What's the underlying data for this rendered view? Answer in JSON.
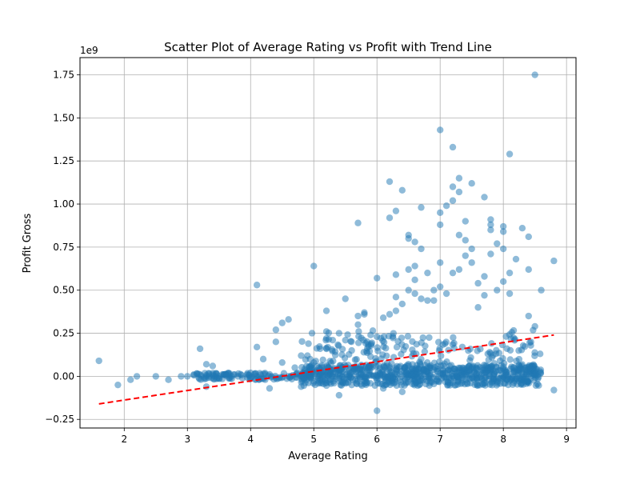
{
  "chart_data": {
    "type": "scatter",
    "title": "Scatter Plot of Average Rating vs Profit with Trend Line",
    "xlabel": "Average Rating",
    "ylabel": "Profit Gross",
    "y_multiplier_label": "1e9",
    "xlim": [
      1.3,
      9.15
    ],
    "ylim": [
      -0.3,
      1.85
    ],
    "x_ticks": [
      2,
      3,
      4,
      5,
      6,
      7,
      8,
      9
    ],
    "x_tick_labels": [
      "2",
      "3",
      "4",
      "5",
      "6",
      "7",
      "8",
      "9"
    ],
    "y_ticks": [
      -0.25,
      0.0,
      0.25,
      0.5,
      0.75,
      1.0,
      1.25,
      1.5,
      1.75
    ],
    "y_tick_labels": [
      "−0.25",
      "0.00",
      "0.25",
      "0.50",
      "0.75",
      "1.00",
      "1.25",
      "1.50",
      "1.75"
    ],
    "grid": true,
    "colors": {
      "points": "#1f77b4",
      "trend": "#ff0000"
    },
    "trend_line": {
      "x": [
        1.6,
        8.8
      ],
      "y": [
        -0.16,
        0.24
      ]
    },
    "points": [
      [
        1.6,
        0.09
      ],
      [
        1.9,
        -0.05
      ],
      [
        2.1,
        -0.02
      ],
      [
        2.2,
        0.0
      ],
      [
        2.5,
        0.0
      ],
      [
        2.7,
        -0.02
      ],
      [
        2.9,
        0.0
      ],
      [
        3.0,
        0.0
      ],
      [
        3.1,
        0.01
      ],
      [
        3.2,
        0.16
      ],
      [
        3.3,
        0.07
      ],
      [
        3.3,
        -0.06
      ],
      [
        3.4,
        0.06
      ],
      [
        3.3,
        0.0
      ],
      [
        3.5,
        0.0
      ],
      [
        3.6,
        0.01
      ],
      [
        3.7,
        0.0
      ],
      [
        3.8,
        0.0
      ],
      [
        4.0,
        0.02
      ],
      [
        4.1,
        0.53
      ],
      [
        4.1,
        0.17
      ],
      [
        4.2,
        0.1
      ],
      [
        4.3,
        -0.07
      ],
      [
        4.4,
        0.27
      ],
      [
        4.4,
        0.2
      ],
      [
        4.5,
        0.31
      ],
      [
        4.6,
        0.33
      ],
      [
        4.5,
        0.08
      ],
      [
        4.7,
        0.05
      ],
      [
        4.8,
        0.12
      ],
      [
        4.8,
        -0.06
      ],
      [
        4.9,
        0.12
      ],
      [
        5.0,
        0.64
      ],
      [
        5.0,
        0.08
      ],
      [
        5.1,
        0.16
      ],
      [
        5.2,
        0.38
      ],
      [
        5.2,
        0.26
      ],
      [
        5.2,
        0.22
      ],
      [
        5.3,
        0.21
      ],
      [
        5.4,
        0.25
      ],
      [
        5.4,
        -0.11
      ],
      [
        5.5,
        0.45
      ],
      [
        5.5,
        0.21
      ],
      [
        5.6,
        0.15
      ],
      [
        5.6,
        -0.05
      ],
      [
        5.7,
        0.89
      ],
      [
        5.7,
        0.35
      ],
      [
        5.7,
        0.3
      ],
      [
        5.8,
        0.37
      ],
      [
        5.8,
        0.36
      ],
      [
        5.9,
        0.24
      ],
      [
        6.0,
        0.57
      ],
      [
        6.0,
        0.23
      ],
      [
        6.0,
        -0.2
      ],
      [
        6.1,
        0.34
      ],
      [
        6.1,
        -0.07
      ],
      [
        6.2,
        1.13
      ],
      [
        6.2,
        0.92
      ],
      [
        6.2,
        0.36
      ],
      [
        6.3,
        0.96
      ],
      [
        6.3,
        0.59
      ],
      [
        6.3,
        0.46
      ],
      [
        6.3,
        0.38
      ],
      [
        6.4,
        1.08
      ],
      [
        6.4,
        0.42
      ],
      [
        6.4,
        -0.09
      ],
      [
        6.5,
        0.82
      ],
      [
        6.5,
        0.8
      ],
      [
        6.5,
        0.62
      ],
      [
        6.5,
        0.5
      ],
      [
        6.6,
        0.78
      ],
      [
        6.6,
        0.64
      ],
      [
        6.6,
        0.56
      ],
      [
        6.6,
        0.48
      ],
      [
        6.7,
        0.98
      ],
      [
        6.7,
        0.74
      ],
      [
        6.7,
        0.45
      ],
      [
        6.8,
        0.6
      ],
      [
        6.8,
        0.44
      ],
      [
        6.9,
        0.5
      ],
      [
        6.9,
        0.44
      ],
      [
        7.0,
        1.43
      ],
      [
        7.0,
        0.95
      ],
      [
        7.0,
        0.88
      ],
      [
        7.0,
        0.66
      ],
      [
        7.0,
        0.52
      ],
      [
        7.1,
        0.99
      ],
      [
        7.1,
        0.48
      ],
      [
        7.2,
        1.33
      ],
      [
        7.2,
        1.1
      ],
      [
        7.2,
        1.02
      ],
      [
        7.2,
        0.6
      ],
      [
        7.3,
        1.15
      ],
      [
        7.3,
        1.07
      ],
      [
        7.3,
        0.82
      ],
      [
        7.3,
        0.62
      ],
      [
        7.4,
        0.9
      ],
      [
        7.4,
        0.79
      ],
      [
        7.4,
        0.7
      ],
      [
        7.5,
        1.12
      ],
      [
        7.5,
        0.74
      ],
      [
        7.5,
        0.66
      ],
      [
        7.6,
        0.54
      ],
      [
        7.6,
        0.4
      ],
      [
        7.7,
        1.04
      ],
      [
        7.7,
        0.58
      ],
      [
        7.7,
        0.47
      ],
      [
        7.8,
        0.91
      ],
      [
        7.8,
        0.88
      ],
      [
        7.8,
        0.85
      ],
      [
        7.8,
        0.71
      ],
      [
        7.9,
        0.77
      ],
      [
        7.9,
        0.5
      ],
      [
        8.0,
        0.87
      ],
      [
        8.0,
        0.84
      ],
      [
        8.0,
        0.74
      ],
      [
        8.0,
        0.55
      ],
      [
        8.1,
        1.29
      ],
      [
        8.1,
        0.6
      ],
      [
        8.1,
        0.48
      ],
      [
        8.2,
        0.68
      ],
      [
        8.3,
        0.86
      ],
      [
        8.4,
        0.81
      ],
      [
        8.4,
        0.62
      ],
      [
        8.5,
        1.75
      ],
      [
        8.6,
        0.5
      ],
      [
        8.8,
        0.67
      ],
      [
        8.8,
        -0.08
      ],
      [
        8.5,
        0.29
      ],
      [
        8.4,
        0.35
      ],
      [
        8.5,
        0.03
      ],
      [
        8.3,
        0.0
      ]
    ]
  }
}
